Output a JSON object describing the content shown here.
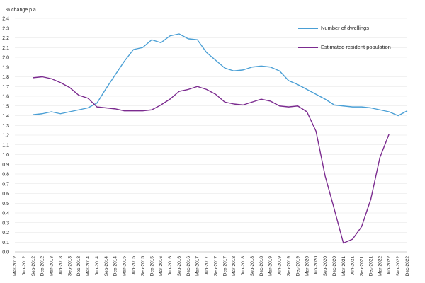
{
  "chart_data": {
    "type": "line",
    "ylabel": "% change p.a.",
    "ylim": [
      0,
      2.4
    ],
    "ytick_step": 0.1,
    "grid": "horizontal",
    "legend_placement": "top-right",
    "categories": [
      "Mar-2012",
      "Jun-2012",
      "Sep-2012",
      "Dec-2012",
      "Mar-2013",
      "Jun-2013",
      "Sep-2013",
      "Dec-2013",
      "Mar-2014",
      "Jun-2014",
      "Sep-2014",
      "Dec-2014",
      "Mar-2015",
      "Jun-2015",
      "Sep-2015",
      "Dec-2015",
      "Mar-2016",
      "Jun-2016",
      "Sep-2016",
      "Dec-2016",
      "Mar-2017",
      "Jun-2017",
      "Sep-2017",
      "Dec-2017",
      "Mar-2018",
      "Jun-2018",
      "Sep-2018",
      "Dec-2018",
      "Mar-2019",
      "Jun-2019",
      "Sep-2019",
      "Dec-2019",
      "Mar-2020",
      "Jun-2020",
      "Sep-2020",
      "Dec-2020",
      "Mar-2021",
      "Jun-2021",
      "Sep-2021",
      "Dec-2021",
      "Mar-2022",
      "Jun-2022",
      "Sep-2022",
      "Dec-2022"
    ],
    "series": [
      {
        "name": "Number of dwellings",
        "color": "#4a9fd5",
        "values": [
          null,
          null,
          1.41,
          1.42,
          1.44,
          1.42,
          1.44,
          1.46,
          1.48,
          1.53,
          1.68,
          1.82,
          1.96,
          2.08,
          2.1,
          2.18,
          2.15,
          2.22,
          2.24,
          2.19,
          2.18,
          2.05,
          1.97,
          1.89,
          1.86,
          1.87,
          1.9,
          1.91,
          1.9,
          1.86,
          1.76,
          1.72,
          1.67,
          1.62,
          1.57,
          1.51,
          1.5,
          1.49,
          1.49,
          1.48,
          1.46,
          1.44,
          1.4,
          1.45
        ]
      },
      {
        "name": "Estimated resident population",
        "color": "#7b2b8f",
        "values": [
          null,
          null,
          1.79,
          1.8,
          1.78,
          1.74,
          1.69,
          1.61,
          1.58,
          1.49,
          1.48,
          1.47,
          1.45,
          1.45,
          1.45,
          1.46,
          1.51,
          1.57,
          1.65,
          1.67,
          1.7,
          1.67,
          1.62,
          1.54,
          1.52,
          1.51,
          1.54,
          1.57,
          1.55,
          1.5,
          1.49,
          1.5,
          1.44,
          1.24,
          0.78,
          0.44,
          0.09,
          0.13,
          0.26,
          0.54,
          0.97,
          1.21,
          null,
          null
        ]
      }
    ]
  }
}
